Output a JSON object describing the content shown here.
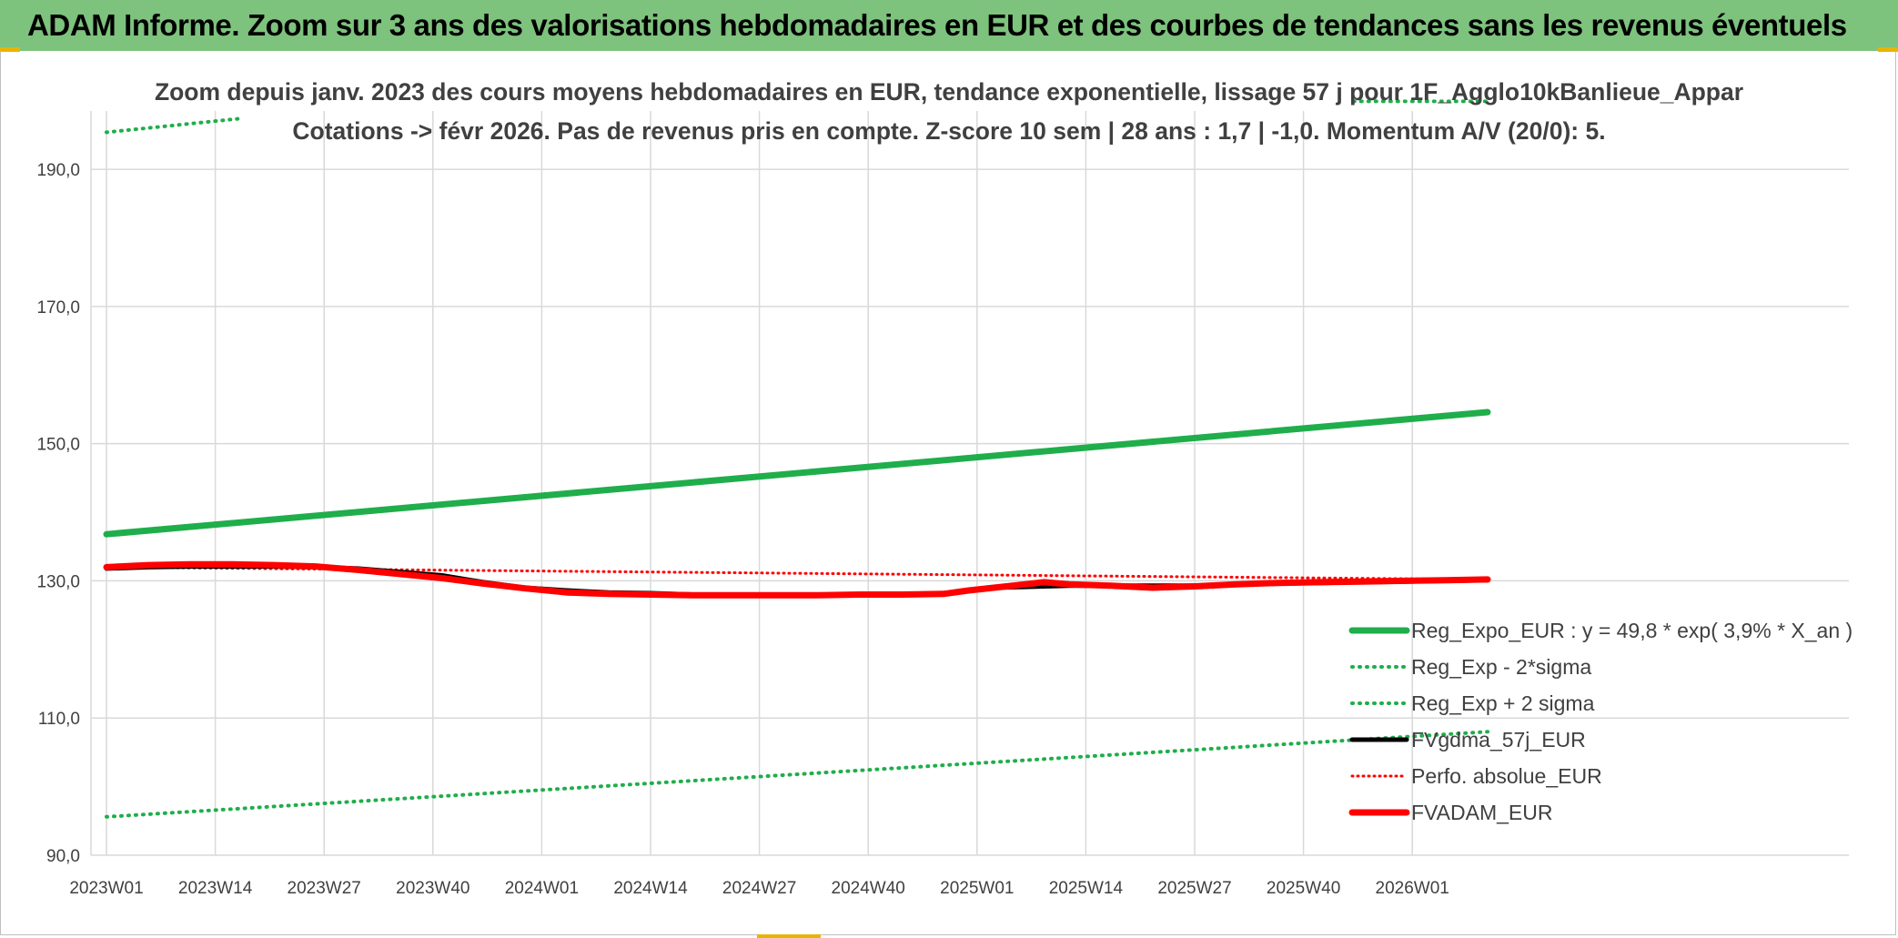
{
  "header": {
    "title": "ADAM Informe. Zoom sur 3 ans des valorisations hebdomadaires en EUR et des courbes de tendances sans les revenus éventuels"
  },
  "chart_data": {
    "type": "line",
    "title": "Zoom depuis janv. 2023 des cours moyens hebdomadaires en EUR, tendance exponentielle, lissage 57 j pour 1F_Agglo10kBanlieue_Appar",
    "subtitle": "Cotations -> févr 2026. Pas de revenus pris en compte. Z-score 10 sem | 28 ans : 1,7 | -1,0. Momentum A/V (20/0): 5.",
    "xlabel": "",
    "ylabel": "",
    "x_range": [
      0,
      166
    ],
    "ylim": [
      90,
      198.5
    ],
    "grid": true,
    "legend_position": "bottom-right",
    "y_ticks": [
      {
        "value": 90,
        "label": "90,0"
      },
      {
        "value": 110,
        "label": "110,0"
      },
      {
        "value": 130,
        "label": "130,0"
      },
      {
        "value": 150,
        "label": "150,0"
      },
      {
        "value": 170,
        "label": "170,0"
      },
      {
        "value": 190,
        "label": "190,0"
      }
    ],
    "x_ticks": [
      {
        "index": 0,
        "label": "2023W01"
      },
      {
        "index": 13,
        "label": "2023W14"
      },
      {
        "index": 26,
        "label": "2023W27"
      },
      {
        "index": 39,
        "label": "2023W40"
      },
      {
        "index": 52,
        "label": "2024W01"
      },
      {
        "index": 65,
        "label": "2024W14"
      },
      {
        "index": 78,
        "label": "2024W27"
      },
      {
        "index": 91,
        "label": "2024W40"
      },
      {
        "index": 104,
        "label": "2025W01"
      },
      {
        "index": 117,
        "label": "2025W14"
      },
      {
        "index": 130,
        "label": "2025W27"
      },
      {
        "index": 143,
        "label": "2025W40"
      },
      {
        "index": 156,
        "label": "2026W01"
      }
    ],
    "series": [
      {
        "name": "Reg_Expo_EUR : y = 49,8 * exp( 3,9% *  X_an )",
        "color": "#1fae4b",
        "width": 7,
        "dash": "",
        "x": [
          0,
          165
        ],
        "y": [
          136.8,
          154.6
        ]
      },
      {
        "name": "Reg_Exp - 2*sigma",
        "color": "#1fae4b",
        "width": 4,
        "dash": "1 7",
        "x": [
          0,
          165
        ],
        "y": [
          95.6,
          108.0
        ]
      },
      {
        "name": "Reg_Exp + 2 sigma",
        "color": "#1fae4b",
        "width": 4,
        "dash": "1 7",
        "x": [
          0,
          16,
          149,
          165
        ],
        "y": [
          195.4,
          197.4,
          199.9,
          199.9
        ],
        "gap_after_index": 1
      },
      {
        "name": "FVgdma_57j_EUR",
        "color": "#000000",
        "width": 5,
        "dash": "",
        "x": [
          0,
          5,
          10,
          15,
          20,
          25,
          30,
          35,
          40,
          45,
          50,
          55,
          60,
          65,
          70,
          75,
          80,
          85,
          90,
          95,
          100,
          103,
          106,
          109,
          112,
          115,
          120,
          125,
          130,
          135,
          140,
          145,
          150,
          155,
          160,
          165
        ],
        "y": [
          131.8,
          132.0,
          132.1,
          132.1,
          132.1,
          132.0,
          131.8,
          131.3,
          130.8,
          129.8,
          129.0,
          128.6,
          128.3,
          128.2,
          128.0,
          128.0,
          128.0,
          128.0,
          128.0,
          128.1,
          128.2,
          128.6,
          129.0,
          129.1,
          129.2,
          129.3,
          129.3,
          129.3,
          129.3,
          129.5,
          129.6,
          129.7,
          129.8,
          129.9,
          130.0,
          130.1
        ]
      },
      {
        "name": "Perfo. absolue_EUR",
        "color": "#ff0000",
        "width": 3,
        "dash": "1 5",
        "x": [
          0,
          165
        ],
        "y": [
          132.0,
          130.2
        ]
      },
      {
        "name": "FVADAM_EUR",
        "color": "#ff0000",
        "width": 7,
        "dash": "",
        "x": [
          0,
          5,
          10,
          15,
          20,
          25,
          30,
          35,
          40,
          45,
          50,
          55,
          60,
          65,
          70,
          75,
          80,
          85,
          90,
          95,
          100,
          103,
          106,
          109,
          112,
          115,
          120,
          125,
          130,
          135,
          140,
          145,
          150,
          155,
          160,
          165
        ],
        "y": [
          132.0,
          132.3,
          132.4,
          132.4,
          132.3,
          132.1,
          131.6,
          131.0,
          130.4,
          129.6,
          128.9,
          128.3,
          128.1,
          128.0,
          127.9,
          127.9,
          127.9,
          127.9,
          128.0,
          128.0,
          128.1,
          128.6,
          129.0,
          129.4,
          129.8,
          129.5,
          129.3,
          129.0,
          129.2,
          129.5,
          129.7,
          129.8,
          129.9,
          130.0,
          130.1,
          130.2
        ]
      }
    ]
  }
}
